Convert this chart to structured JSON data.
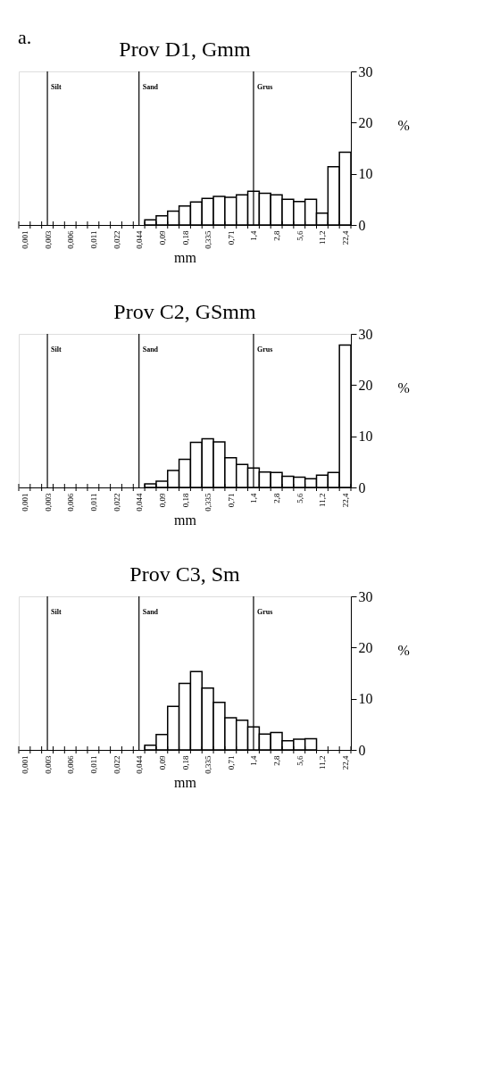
{
  "chart_data": [
    {
      "type": "bar",
      "title": "Prov D1, Gmm",
      "xlabel": "mm",
      "ylabel": "%",
      "annotations": [
        "a."
      ],
      "color": "#ffffff",
      "grid": false,
      "categories": [
        "0,001",
        null,
        "0,003",
        null,
        "0,006",
        null,
        "0,011",
        null,
        "0,022",
        null,
        "0,044",
        null,
        "0,09",
        null,
        "0,18",
        null,
        "0,335",
        null,
        "0,71",
        null,
        "1,4",
        null,
        "2,8",
        null,
        "5,6",
        null,
        "11,2",
        null,
        "22,4"
      ],
      "values": [
        null,
        null,
        null,
        null,
        null,
        null,
        null,
        null,
        null,
        null,
        null,
        1.0,
        1.8,
        2.7,
        3.7,
        4.5,
        5.2,
        5.6,
        5.4,
        5.9,
        6.6,
        6.2,
        5.9,
        5.0,
        4.6,
        5.0,
        2.3,
        11.4,
        14.2
      ],
      "ylim": [
        0,
        30
      ],
      "yticks": [
        0,
        10,
        20,
        30
      ],
      "ref_lines": [
        {
          "axis": "x",
          "value": "0,003",
          "label": "Silt"
        },
        {
          "axis": "x",
          "value": "0,044",
          "label": "Sand"
        },
        {
          "axis": "x",
          "value": "1,4",
          "label": "Grus"
        }
      ]
    },
    {
      "type": "bar",
      "title": "Prov C2, GSmm",
      "xlabel": "mm",
      "ylabel": "%",
      "color": "#ffffff",
      "grid": false,
      "categories": [
        "0,001",
        null,
        "0,003",
        null,
        "0,006",
        null,
        "0,011",
        null,
        "0,022",
        null,
        "0,044",
        null,
        "0,09",
        null,
        "0,18",
        null,
        "0,335",
        null,
        "0,71",
        null,
        "1,4",
        null,
        "2,8",
        null,
        "5,6",
        null,
        "11,2",
        null,
        "22,4"
      ],
      "values": [
        null,
        null,
        null,
        null,
        null,
        null,
        null,
        null,
        null,
        null,
        null,
        0.7,
        1.2,
        3.3,
        5.5,
        8.8,
        9.5,
        8.9,
        5.8,
        4.5,
        3.8,
        3.0,
        2.9,
        2.2,
        2.0,
        1.7,
        2.4,
        2.9,
        27.8
      ],
      "ylim": [
        0,
        30
      ],
      "yticks": [
        0,
        10,
        20,
        30
      ],
      "ref_lines": [
        {
          "axis": "x",
          "value": "0,003",
          "label": "Silt"
        },
        {
          "axis": "x",
          "value": "0,044",
          "label": "Sand"
        },
        {
          "axis": "x",
          "value": "1,4",
          "label": "Grus"
        }
      ]
    },
    {
      "type": "bar",
      "title": "Prov C3, Sm",
      "xlabel": "mm",
      "ylabel": "%",
      "color": "#ffffff",
      "grid": false,
      "categories": [
        "0,001",
        null,
        "0,003",
        null,
        "0,006",
        null,
        "0,011",
        null,
        "0,022",
        null,
        "0,044",
        null,
        "0,09",
        null,
        "0,18",
        null,
        "0,335",
        null,
        "0,71",
        null,
        "1,4",
        null,
        "2,8",
        null,
        "5,6",
        null,
        "11,2",
        null,
        "22,4"
      ],
      "values": [
        null,
        null,
        null,
        null,
        null,
        null,
        null,
        null,
        null,
        null,
        null,
        0.9,
        3.0,
        8.5,
        13.0,
        15.3,
        12.1,
        9.3,
        6.3,
        5.8,
        4.5,
        3.1,
        3.4,
        1.8,
        2.1,
        2.2,
        null,
        null,
        null
      ],
      "ylim": [
        0,
        30
      ],
      "yticks": [
        0,
        10,
        20,
        30
      ],
      "ref_lines": [
        {
          "axis": "x",
          "value": "0,003",
          "label": "Silt"
        },
        {
          "axis": "x",
          "value": "0,044",
          "label": "Sand"
        },
        {
          "axis": "x",
          "value": "1,4",
          "label": "Grus"
        }
      ]
    }
  ]
}
